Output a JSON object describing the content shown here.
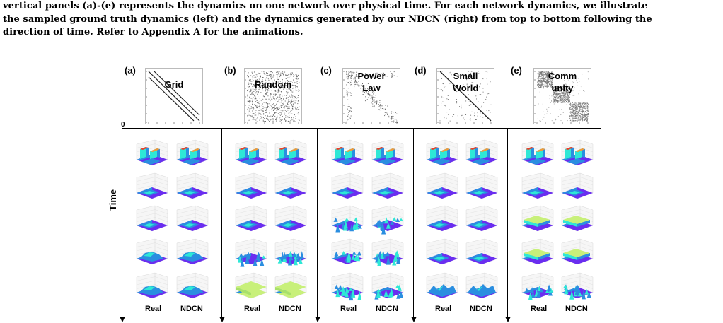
{
  "caption": {
    "line1": "vertical panels (a)-(e) represents the dynamics on one network over physical time. For each network dynamics, we illustrate",
    "line2": "the sampled ground truth dynamics (left) and the dynamics generated by our NDCN (right) from top to bottom following the",
    "line3": "direction of time. Refer to Appendix A for the animations."
  },
  "figure": {
    "axis_origin": "0",
    "time_label": "Time",
    "column_real": "Real",
    "column_ndcn": "NDCN",
    "panels": [
      {
        "letter": "(a)",
        "name_line1": "Grid",
        "name_line2": "",
        "surface_style": [
          "plateau",
          "flat",
          "flat",
          "hump",
          "hump"
        ]
      },
      {
        "letter": "(b)",
        "name_line1": "Random",
        "name_line2": "",
        "surface_style": [
          "plateau",
          "flat",
          "flat",
          "noisy",
          "uniform"
        ]
      },
      {
        "letter": "(c)",
        "name_line1": "Power",
        "name_line2": "Law",
        "surface_style": [
          "plateau",
          "flat",
          "noisy",
          "noisy",
          "noisy"
        ]
      },
      {
        "letter": "(d)",
        "name_line1": "Small",
        "name_line2": "World",
        "surface_style": [
          "plateau",
          "flat",
          "flat",
          "flat",
          "bumpy"
        ]
      },
      {
        "letter": "(e)",
        "name_line1": "Comm",
        "name_line2": "unity",
        "surface_style": [
          "plateau",
          "flat",
          "layered",
          "layered",
          "noisy"
        ]
      }
    ]
  },
  "colors": {
    "surface_low": "#6a2df0",
    "surface_mid": "#2a8ee0",
    "surface_high": "#2ee8d6",
    "surface_yellow": "#c8f07a",
    "peak_red": "#e8402a",
    "peak_orange": "#f09a3a"
  }
}
